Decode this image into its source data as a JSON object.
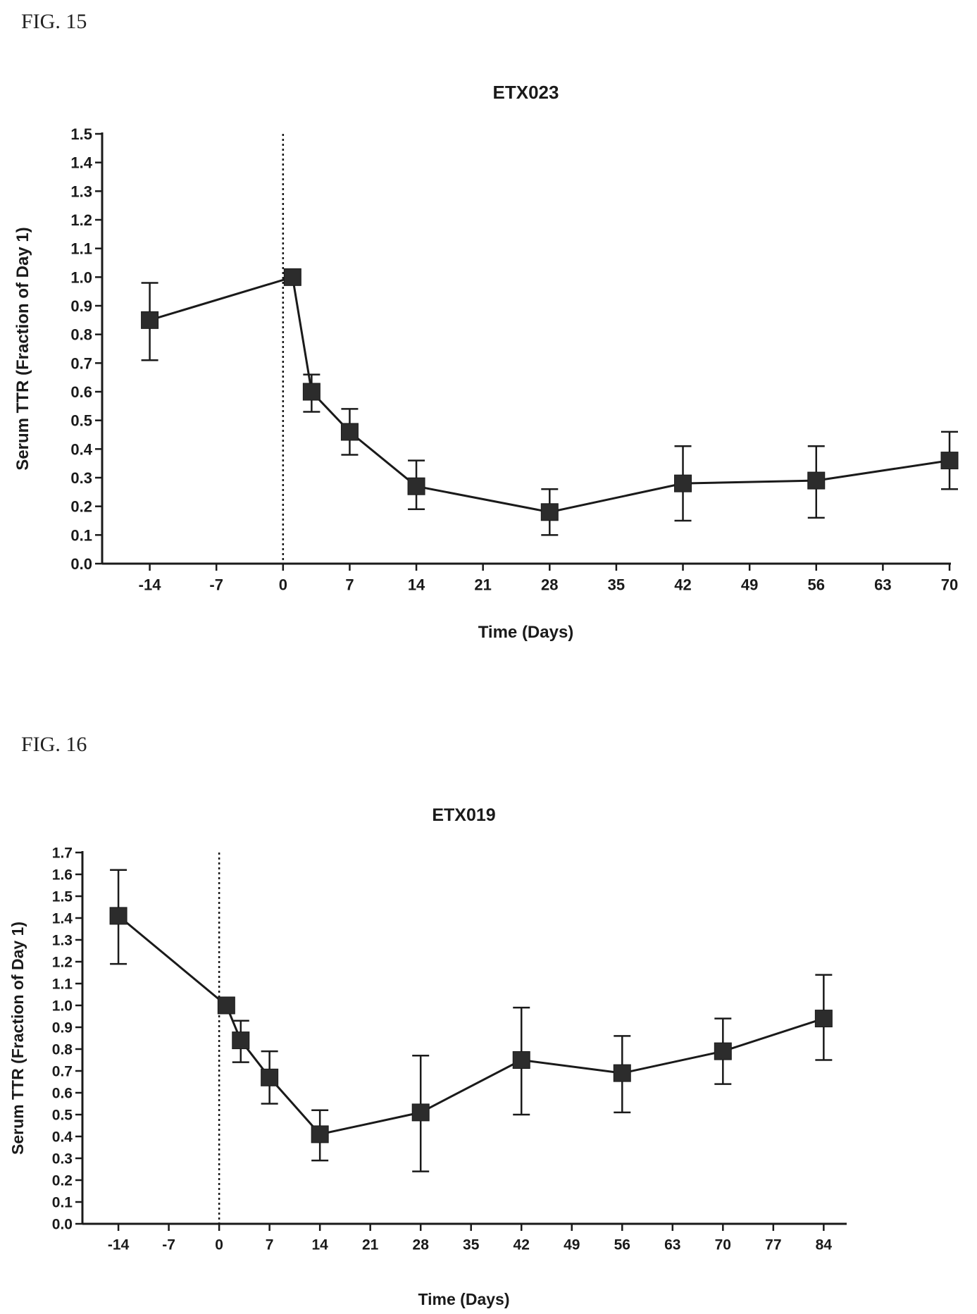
{
  "figures": [
    {
      "label": "FIG. 15",
      "chart_data": {
        "type": "line",
        "title": "ETX023",
        "xlabel": "Time (Days)",
        "ylabel": "Serum TTR (Fraction of Day 1)",
        "xlim": [
          -19,
          70
        ],
        "ylim": [
          0.0,
          1.5
        ],
        "xticks": [
          -14,
          -7,
          0,
          7,
          14,
          21,
          28,
          35,
          42,
          49,
          56,
          63,
          70
        ],
        "yticks": [
          0.0,
          0.1,
          0.2,
          0.3,
          0.4,
          0.5,
          0.6,
          0.7,
          0.8,
          0.9,
          1.0,
          1.1,
          1.2,
          1.3,
          1.4,
          1.5
        ],
        "ytick_labels": [
          "0.0",
          "0.1",
          "0.2",
          "0.3",
          "0.4",
          "0.5",
          "0.6",
          "0.7",
          "0.8",
          "0.9",
          "1.0",
          "1.1",
          "1.2",
          "1.3",
          "1.4",
          "1.5"
        ],
        "reference_line_x": 0,
        "series": [
          {
            "x": [
              -14,
              1,
              3,
              7,
              14,
              28,
              42,
              56,
              70
            ],
            "y": [
              0.85,
              1.0,
              0.6,
              0.46,
              0.27,
              0.18,
              0.28,
              0.29,
              0.36
            ],
            "err_low": [
              0.71,
              1.0,
              0.53,
              0.38,
              0.19,
              0.1,
              0.15,
              0.16,
              0.26
            ],
            "err_high": [
              0.98,
              1.0,
              0.66,
              0.54,
              0.36,
              0.26,
              0.41,
              0.41,
              0.46
            ]
          }
        ],
        "grid": false,
        "marker": "square",
        "color": "#1a1a1a"
      }
    },
    {
      "label": "FIG. 16",
      "chart_data": {
        "type": "line",
        "title": "ETX019",
        "xlabel": "Time (Days)",
        "ylabel": "Serum TTR (Fraction of Day 1)",
        "xlim": [
          -19,
          87
        ],
        "ylim": [
          0.0,
          1.7
        ],
        "xticks": [
          -14,
          -7,
          0,
          7,
          14,
          21,
          28,
          35,
          42,
          49,
          56,
          63,
          70,
          77,
          84
        ],
        "yticks": [
          0.0,
          0.1,
          0.2,
          0.3,
          0.4,
          0.5,
          0.6,
          0.7,
          0.8,
          0.9,
          1.0,
          1.1,
          1.2,
          1.3,
          1.4,
          1.5,
          1.6,
          1.7
        ],
        "ytick_labels": [
          "0.0",
          "0.1",
          "0.2",
          "0.3",
          "0.4",
          "0.5",
          "0.6",
          "0.7",
          "0.8",
          "0.9",
          "1.0",
          "1.1",
          "1.2",
          "1.3",
          "1.4",
          "1.5",
          "1.6",
          "1.7"
        ],
        "reference_line_x": 0,
        "series": [
          {
            "x": [
              -14,
              1,
              3,
              7,
              14,
              28,
              42,
              56,
              70,
              84
            ],
            "y": [
              1.41,
              1.0,
              0.84,
              0.67,
              0.41,
              0.51,
              0.75,
              0.69,
              0.79,
              0.94
            ],
            "err_low": [
              1.19,
              1.0,
              0.74,
              0.55,
              0.29,
              0.24,
              0.5,
              0.51,
              0.64,
              0.75
            ],
            "err_high": [
              1.62,
              1.0,
              0.93,
              0.79,
              0.52,
              0.77,
              0.99,
              0.86,
              0.94,
              1.14
            ]
          }
        ],
        "grid": false,
        "marker": "square",
        "color": "#1a1a1a"
      }
    }
  ]
}
